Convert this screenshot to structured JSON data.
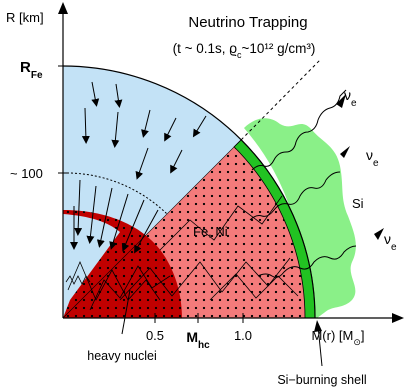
{
  "title": "Neutrino Trapping",
  "subtitle": "(t ~ 0.1s, ϱ",
  "subtitle_sub": "c",
  "subtitle_tail": "~10¹² g/cm³)",
  "y_axis": {
    "label": "R [km]",
    "tick_rfe_main": "R",
    "tick_rfe_sub": "Fe",
    "tick_100": "~ 100"
  },
  "x_axis": {
    "label_main": "M(r) [M",
    "label_sub": "⊙",
    "label_tail": "]",
    "tick_05": "0.5",
    "tick_mhc_main": "M",
    "tick_mhc_sub": "hc",
    "tick_10": "1.0"
  },
  "regions": {
    "fe_ni": "Fe, Ni",
    "si": "Si",
    "heavy_nuclei": "heavy nuclei",
    "si_burning_shell": "Si−burning shell"
  },
  "neutrino": {
    "symbol": "ν",
    "subscript": "e"
  },
  "colors": {
    "outer_blue": "#c3e2f6",
    "trapped_blue": "#c3e2f6",
    "fe_ni_red": "#f47b7b",
    "heavy_nuclei_red": "#c00000",
    "si_green": "#8af088",
    "shell_green": "#22c222"
  }
}
